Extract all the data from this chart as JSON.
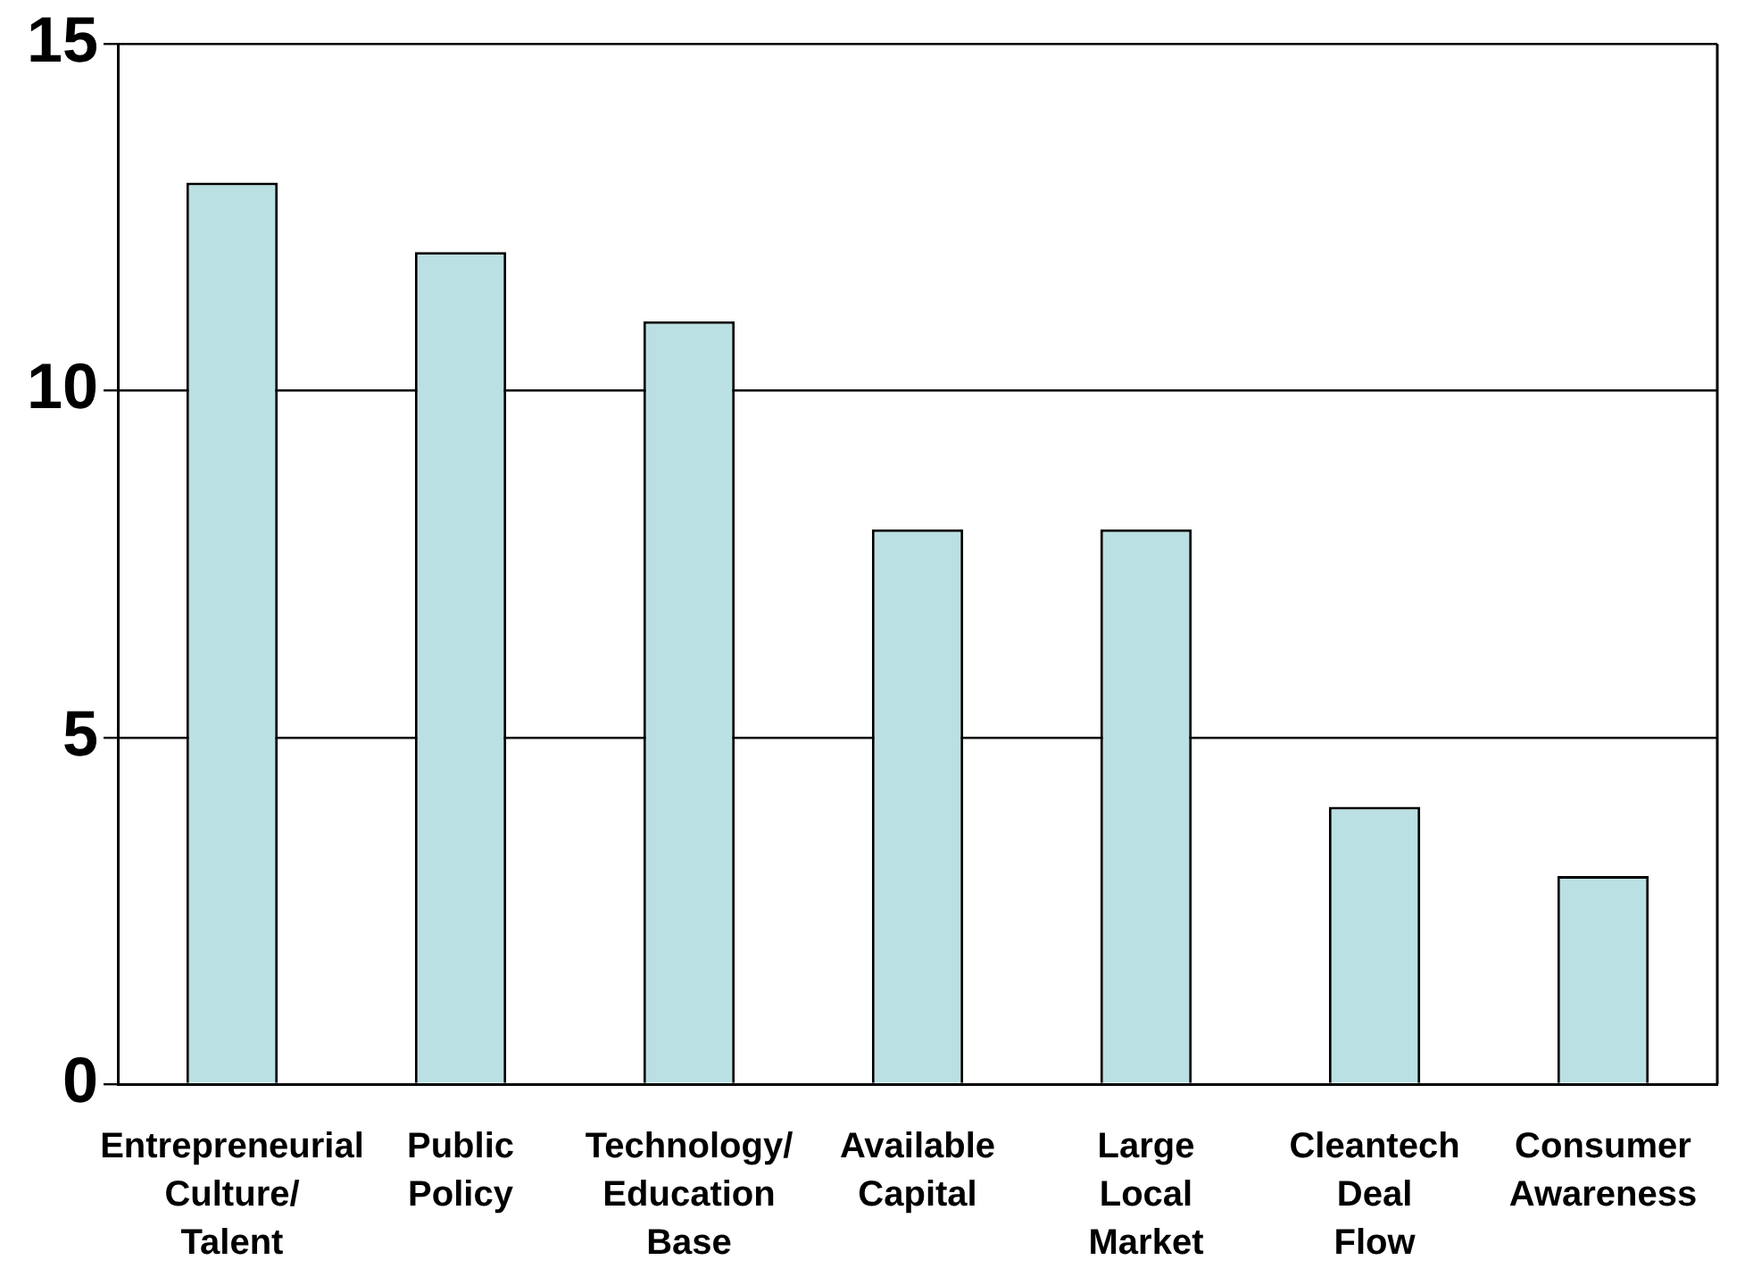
{
  "chart_data": {
    "type": "bar",
    "categories": [
      "Entrepreneurial Culture/ Talent",
      "Public Policy",
      "Technology/ Education Base",
      "Available Capital",
      "Large Local Market",
      "Cleantech Deal Flow",
      "Consumer Awareness"
    ],
    "values": [
      13,
      12,
      11,
      8,
      8,
      4,
      3
    ],
    "color": "#bbe0e3",
    "ylim": [
      0,
      15
    ],
    "yticks": [
      0,
      5,
      10,
      15
    ],
    "grid": "y"
  }
}
